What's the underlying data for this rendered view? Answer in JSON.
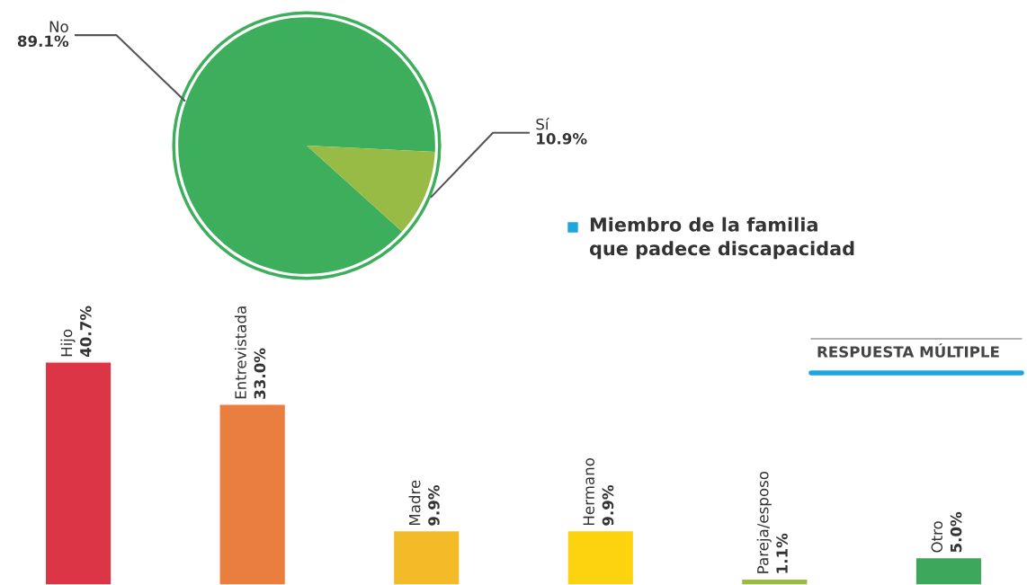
{
  "chart_data": [
    {
      "type": "pie",
      "title": "Miembro de la familia\nque padece discapacidad",
      "categories": [
        "No",
        "Sí"
      ],
      "values": [
        89.1,
        10.9
      ],
      "colors": [
        "#3dae5b",
        "#98bb45"
      ],
      "value_labels": [
        "89.1%",
        "10.9%"
      ]
    },
    {
      "type": "bar",
      "annotations": [
        "RESPUESTA MÚLTIPLE"
      ],
      "categories": [
        "Hijo",
        "Entrevistada",
        "Madre",
        "Hermano",
        "Pareja/esposo",
        "Otro"
      ],
      "values": [
        40.7,
        33.0,
        9.9,
        9.9,
        1.1,
        5.0
      ],
      "colors": [
        "#dc3545",
        "#e97e3e",
        "#f3bb27",
        "#fdd20f",
        "#98bb45",
        "#3da85b"
      ],
      "value_labels": [
        "40.7%",
        "33.0%",
        "9.9%",
        "9.9%",
        "1.1%",
        "5.0%"
      ]
    }
  ]
}
